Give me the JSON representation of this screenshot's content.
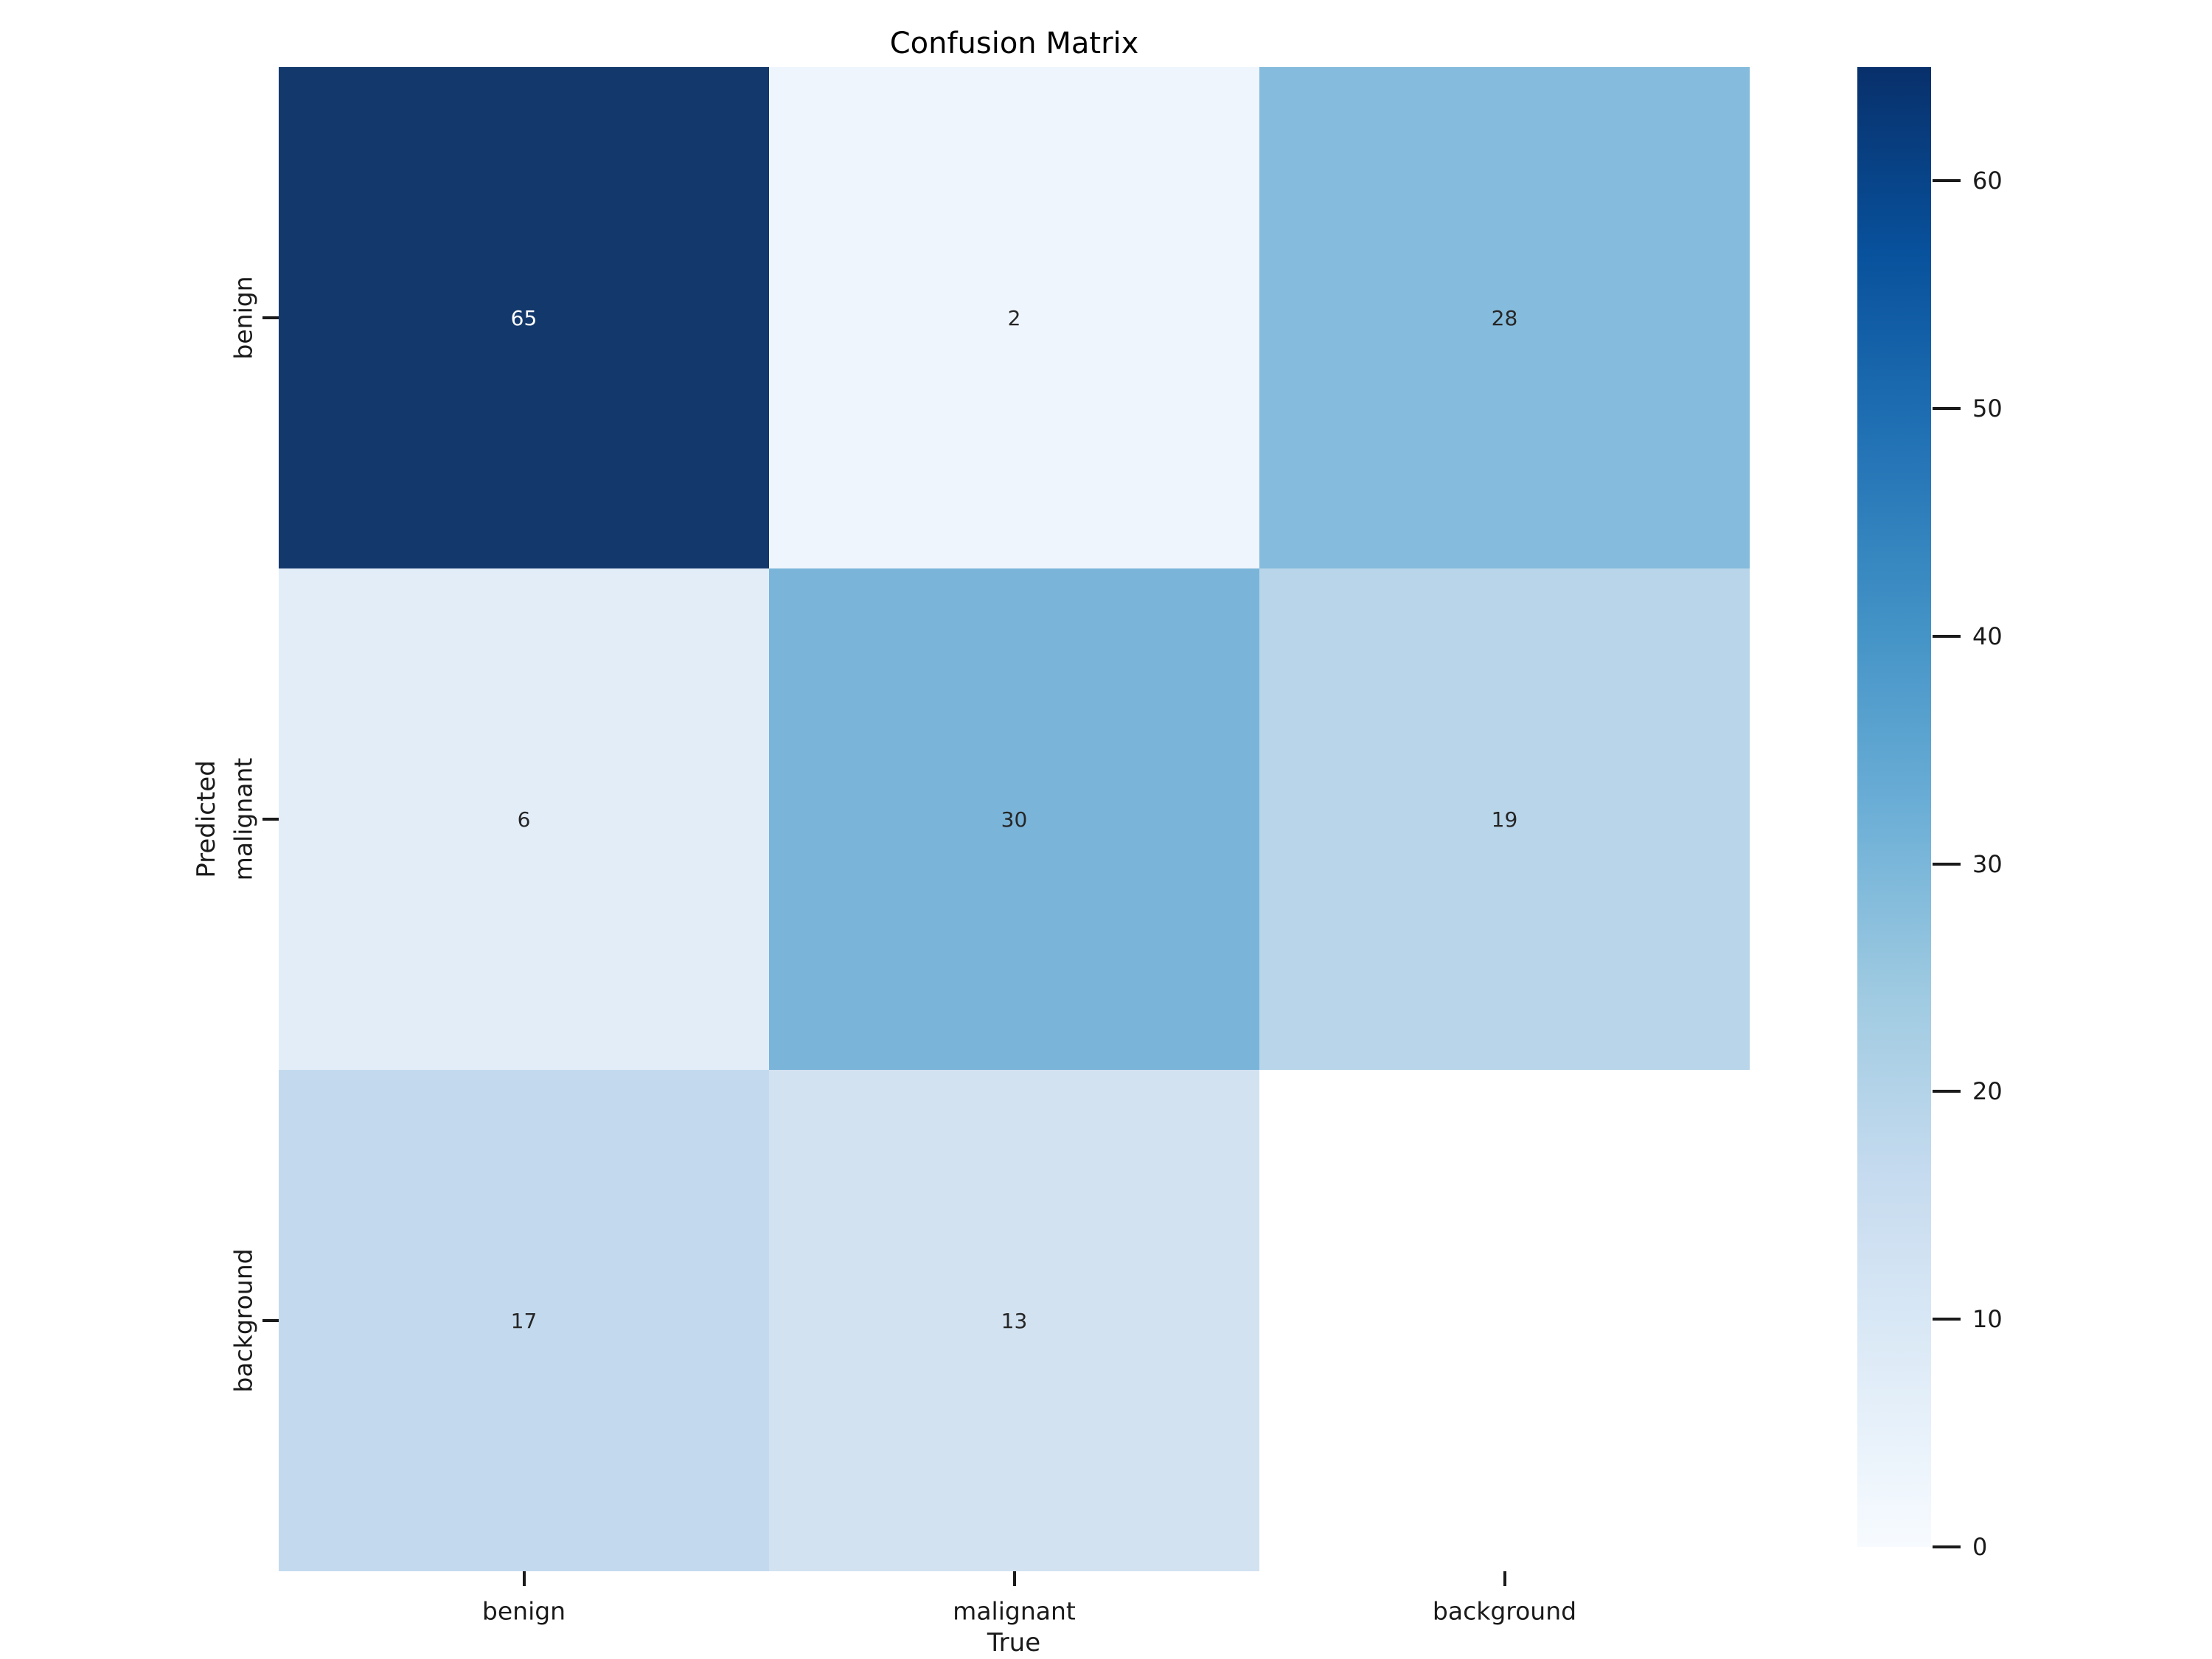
{
  "figure": {
    "background_color": "#ffffff",
    "text_color": "#1a1a1a"
  },
  "chart_data": {
    "type": "heatmap",
    "title": "Confusion Matrix",
    "xlabel": "True",
    "ylabel": "Predicted",
    "x_categories": [
      "benign",
      "malignant",
      "background"
    ],
    "y_categories": [
      "benign",
      "malignant",
      "background"
    ],
    "matrix": [
      [
        65,
        2,
        28
      ],
      [
        6,
        30,
        19
      ],
      [
        17,
        13,
        null
      ]
    ],
    "cell_labels": [
      [
        "65",
        "2",
        "28"
      ],
      [
        "6",
        "30",
        "19"
      ],
      [
        "17",
        "13",
        ""
      ]
    ],
    "cell_colors": [
      [
        "#13396c",
        "#eff5fc",
        "#85bbdc"
      ],
      [
        "#e2edf8",
        "#7ab4d9",
        "#b8d5ea"
      ],
      [
        "#c3daee",
        "#d2e2f1",
        "#ffffff"
      ]
    ],
    "cell_text_colors": [
      [
        "#ffffff",
        "#262626",
        "#262626"
      ],
      [
        "#262626",
        "#262626",
        "#262626"
      ],
      [
        "#262626",
        "#262626",
        "#262626"
      ]
    ],
    "vmin": 0,
    "vmax": 65,
    "colorbar_ticks": [
      "0",
      "10",
      "20",
      "30",
      "40",
      "50",
      "60"
    ],
    "colorbar_tick_values": [
      0,
      10,
      20,
      30,
      40,
      50,
      60
    ],
    "colormap": {
      "name": "Blues",
      "stops": [
        "#f7fbff",
        "#deebf7",
        "#c6dbef",
        "#9ecae1",
        "#6baed6",
        "#4292c6",
        "#2171b5",
        "#08519c",
        "#08306b"
      ]
    },
    "grid": false,
    "legend_position": "colorbar-right"
  }
}
